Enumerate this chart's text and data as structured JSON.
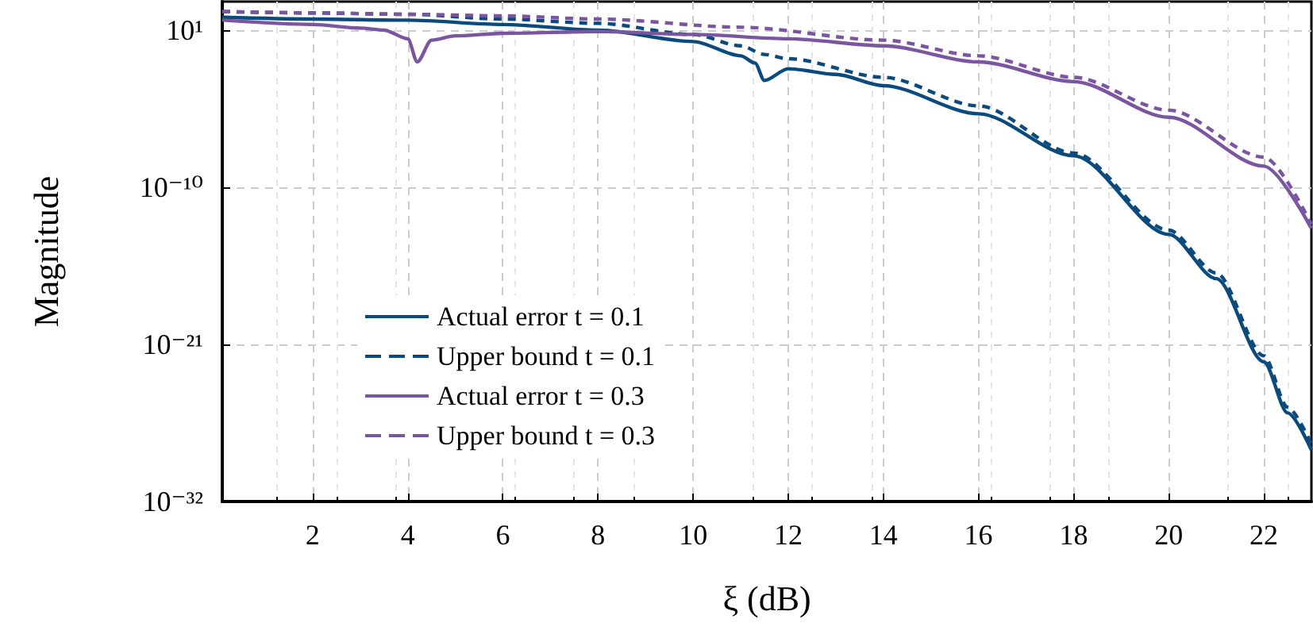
{
  "chart_data": {
    "type": "line",
    "xlabel": "ξ (dB)",
    "ylabel": "Magnitude",
    "log": "y",
    "grid": true,
    "legend": "left",
    "marker": "none",
    "xlim": [
      0.1,
      23
    ],
    "xticks": [
      2,
      4,
      6,
      8,
      10,
      12,
      14,
      16,
      18,
      20,
      22
    ],
    "ylim": [
      1e-32,
      1000.0
    ],
    "yticks": [
      {
        "value": 10,
        "label": "10¹"
      },
      {
        "value": 1e-10,
        "label": "10⁻¹⁰"
      },
      {
        "value": 1e-21,
        "label": "10⁻²¹"
      },
      {
        "value": 1e-32,
        "label": "10⁻³²"
      }
    ],
    "series": [
      {
        "name": "Actual error t = 0.1",
        "color": "#0b4a7d",
        "line_style": "solid",
        "x": [
          0.1,
          2,
          4,
          6,
          8,
          10,
          11,
          11.3,
          11.5,
          12,
          13,
          14,
          16,
          18,
          20,
          21,
          22,
          22.5,
          23
        ],
        "values": [
          80,
          60,
          50,
          25,
          10,
          1.6,
          0.16,
          0.05,
          0.003,
          0.02,
          0.008,
          0.0013,
          1.4e-05,
          1.6e-08,
          5e-14,
          4e-17,
          6e-23,
          1.6e-26,
          4e-29
        ]
      },
      {
        "name": "Upper bound t = 0.1",
        "color": "#0b4a7d",
        "line_style": "dashed",
        "x": [
          0.1,
          2,
          4,
          6,
          8,
          10,
          11,
          11.5,
          12,
          14,
          16,
          18,
          20,
          21,
          22,
          22.5,
          23
        ],
        "values": [
          200,
          160,
          130,
          60,
          30,
          5,
          0.8,
          0.2,
          0.1,
          0.005,
          5e-05,
          2.5e-08,
          1e-13,
          1e-16,
          1.6e-22,
          4e-26,
          1e-28
        ]
      },
      {
        "name": "Actual error t = 0.3",
        "color": "#7a55a0",
        "line_style": "solid",
        "x": [
          0.1,
          2,
          3,
          3.5,
          4,
          4.2,
          4.5,
          5,
          6,
          8,
          10,
          12,
          14,
          16,
          18,
          20,
          22,
          23
        ],
        "values": [
          50,
          25,
          14,
          10,
          2.5,
          0.06,
          2,
          4,
          6,
          8,
          5,
          2.5,
          0.8,
          0.06,
          0.0025,
          8e-06,
          3e-09,
          1.3e-13
        ]
      },
      {
        "name": "Upper bound t = 0.3",
        "color": "#7a55a0",
        "line_style": "dashed",
        "x": [
          0.1,
          2,
          4,
          6,
          8,
          11,
          14,
          16,
          18,
          20,
          22,
          23
        ],
        "values": [
          200,
          160,
          130,
          100,
          60,
          16,
          2,
          0.16,
          0.005,
          2.5e-05,
          1.3e-08,
          2.5e-13
        ]
      }
    ]
  }
}
